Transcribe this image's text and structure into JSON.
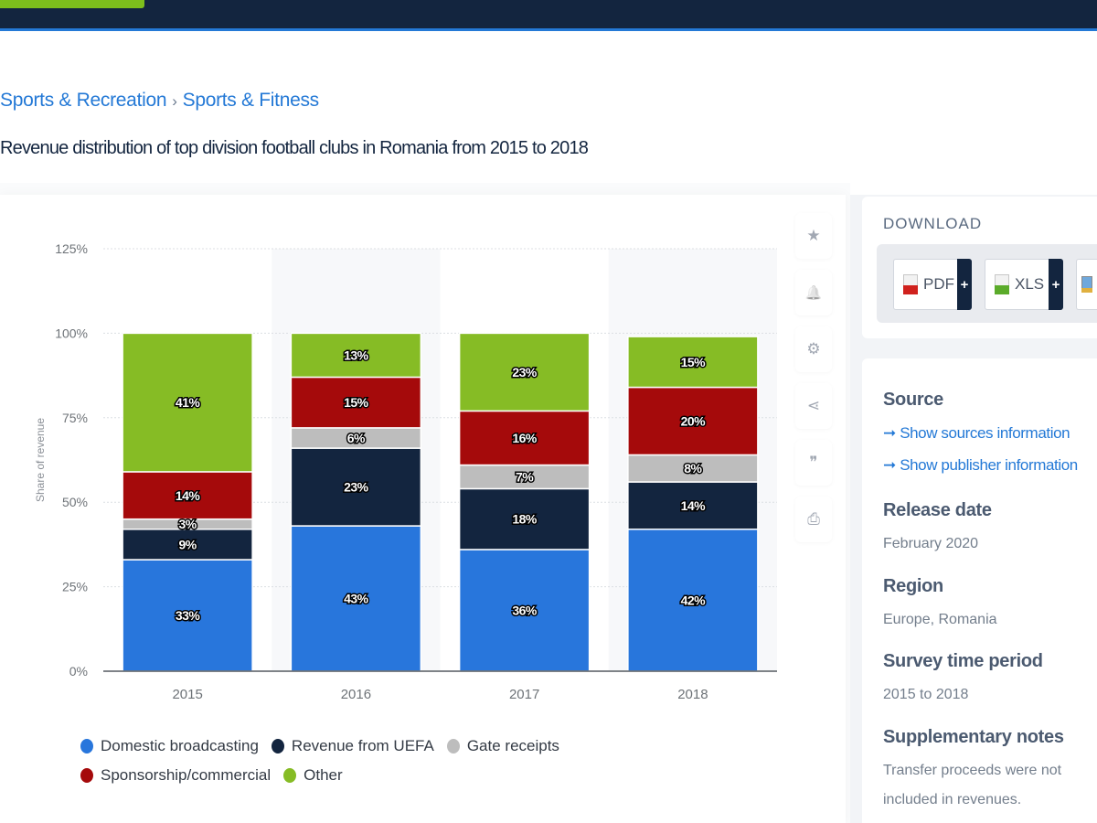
{
  "header": {
    "brand_color": "#7dbf1c",
    "bar_color": "#13253f"
  },
  "breadcrumb": [
    "Sports & Recreation",
    "Sports & Fitness"
  ],
  "breadcrumb_separator": "›",
  "page_title": "Revenue distribution of top division football clubs in Romania from 2015 to 2018",
  "tools": [
    {
      "name": "favorite",
      "icon": "star-icon",
      "glyph": "★"
    },
    {
      "name": "notify",
      "icon": "bell-icon",
      "glyph": "🔔"
    },
    {
      "name": "settings",
      "icon": "gear-icon",
      "glyph": "⚙"
    },
    {
      "name": "share",
      "icon": "share-icon",
      "glyph": "⋖"
    },
    {
      "name": "cite",
      "icon": "quote-icon",
      "glyph": "❞"
    },
    {
      "name": "print",
      "icon": "print-icon",
      "glyph": "⎙"
    }
  ],
  "download": {
    "title": "DOWNLOAD",
    "buttons": [
      {
        "label": "PDF",
        "plus": "+",
        "icon": "pdf-file-icon"
      },
      {
        "label": "XLS",
        "plus": "+",
        "icon": "xls-file-icon"
      }
    ]
  },
  "info": {
    "source_heading": "Source",
    "source_links": [
      "Show sources information",
      "Show publisher information"
    ],
    "link_arrow": "➞",
    "release_heading": "Release date",
    "release_value": "February 2020",
    "region_heading": "Region",
    "region_value": "Europe, Romania",
    "period_heading": "Survey time period",
    "period_value": "2015 to 2018",
    "notes_heading": "Supplementary notes",
    "notes_value_line1": "Transfer proceeds were not included in",
    "notes_value_line2": "revenues."
  },
  "chart_data": {
    "type": "bar",
    "stacked": true,
    "title": "Revenue distribution of top division football clubs in Romania from 2015 to 2018",
    "xlabel": "",
    "ylabel": "Share of revenue",
    "ylim": [
      0,
      125
    ],
    "yticks": [
      0,
      25,
      50,
      75,
      100,
      125
    ],
    "ytick_labels": [
      "0%",
      "25%",
      "50%",
      "75%",
      "100%",
      "125%"
    ],
    "grid": true,
    "legend_position": "bottom",
    "categories": [
      "2015",
      "2016",
      "2017",
      "2018"
    ],
    "series": [
      {
        "name": "Domestic broadcasting",
        "color": "#2876dc",
        "values": [
          33,
          43,
          36,
          42
        ]
      },
      {
        "name": "Revenue from UEFA",
        "color": "#13253f",
        "values": [
          9,
          23,
          18,
          14
        ]
      },
      {
        "name": "Gate receipts",
        "color": "#bdbdbd",
        "values": [
          3,
          6,
          7,
          8
        ]
      },
      {
        "name": "Sponsorship/commercial",
        "color": "#a50a0b",
        "values": [
          14,
          15,
          16,
          20
        ]
      },
      {
        "name": "Other",
        "color": "#86bc25",
        "values": [
          41,
          13,
          23,
          15
        ]
      }
    ],
    "value_suffix": "%"
  }
}
